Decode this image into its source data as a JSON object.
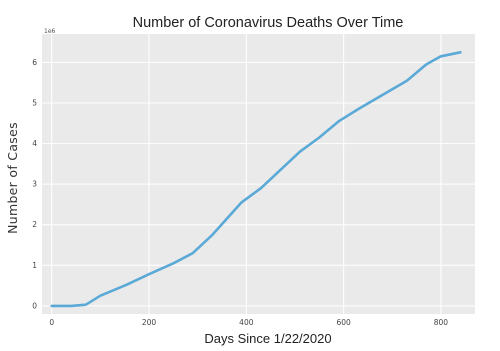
{
  "chart_data": {
    "type": "line",
    "title": "Number of Coronavirus Deaths Over Time",
    "xlabel": "Days Since 1/22/2020",
    "ylabel": "Number of Cases",
    "y_offset_label": "1e6",
    "xlim": [
      -20,
      870
    ],
    "ylim": [
      -0.2,
      6.7
    ],
    "x_ticks": [
      0,
      200,
      400,
      600,
      800
    ],
    "y_ticks": [
      0,
      1,
      2,
      3,
      4,
      5,
      6
    ],
    "grid": true,
    "line_color": "#5aa9d6",
    "plot_background": "#eaeaea",
    "series": [
      {
        "x": [
          0,
          40,
          70,
          100,
          150,
          200,
          250,
          290,
          330,
          360,
          390,
          430,
          470,
          510,
          550,
          590,
          630,
          680,
          730,
          770,
          800,
          840
        ],
        "y": [
          0.0,
          0.0,
          0.03,
          0.25,
          0.5,
          0.78,
          1.05,
          1.3,
          1.75,
          2.15,
          2.55,
          2.9,
          3.35,
          3.8,
          4.15,
          4.55,
          4.85,
          5.2,
          5.55,
          5.95,
          6.15,
          6.25
        ]
      }
    ]
  }
}
